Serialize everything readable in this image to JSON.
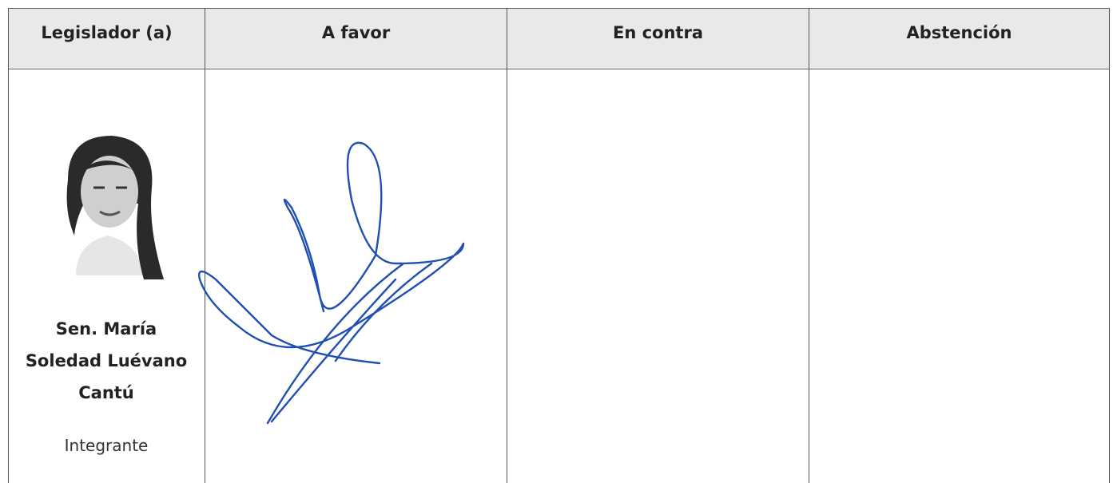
{
  "table": {
    "headers": [
      "Legislador (a)",
      "A favor",
      "En contra",
      "Abstención"
    ],
    "rows": [
      {
        "name": "Sen. María Soledad Luévano Cantú",
        "role": "Integrante"
      }
    ]
  }
}
